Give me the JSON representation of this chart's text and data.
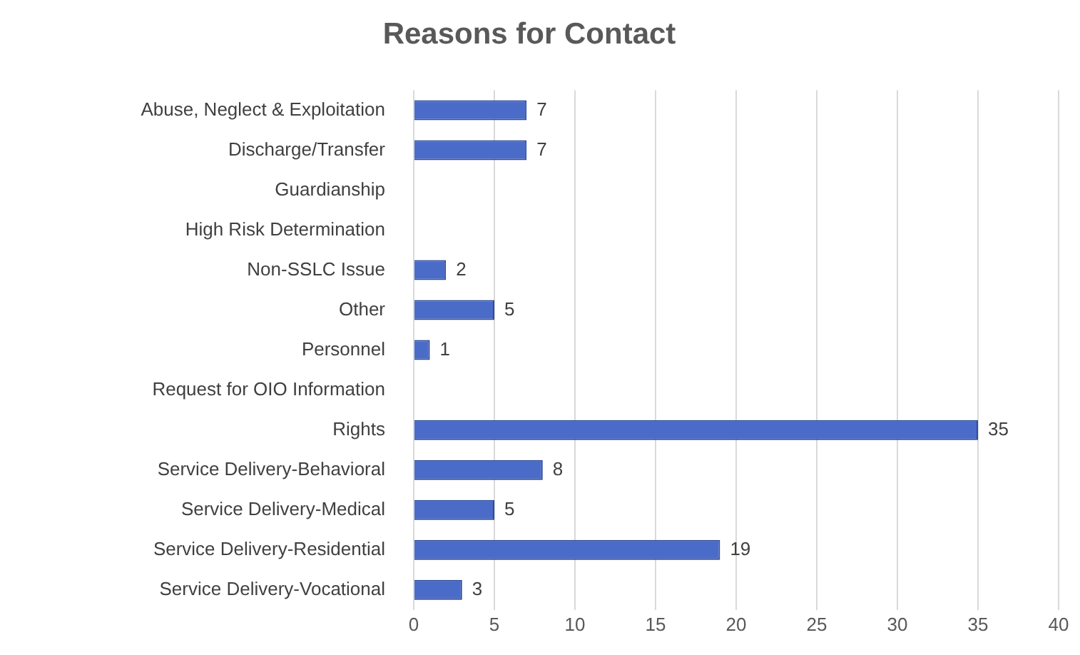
{
  "chart_data": {
    "type": "bar",
    "orientation": "horizontal",
    "title": "Reasons for Contact",
    "categories": [
      "Abuse, Neglect & Exploitation",
      "Discharge/Transfer",
      "Guardianship",
      "High Risk Determination",
      "Non-SSLC Issue",
      "Other",
      "Personnel",
      "Request for OIO Information",
      "Rights",
      "Service Delivery-Behavioral",
      "Service Delivery-Medical",
      "Service Delivery-Residential",
      "Service Delivery-Vocational"
    ],
    "values": [
      7,
      7,
      null,
      null,
      2,
      5,
      1,
      null,
      35,
      8,
      5,
      19,
      3
    ],
    "color": "#4a6cc8",
    "xlim": [
      0,
      40
    ],
    "xticks": [
      0,
      5,
      10,
      15,
      20,
      25,
      30,
      35,
      40
    ],
    "grid": "x",
    "data_labels": true,
    "legend": false
  }
}
